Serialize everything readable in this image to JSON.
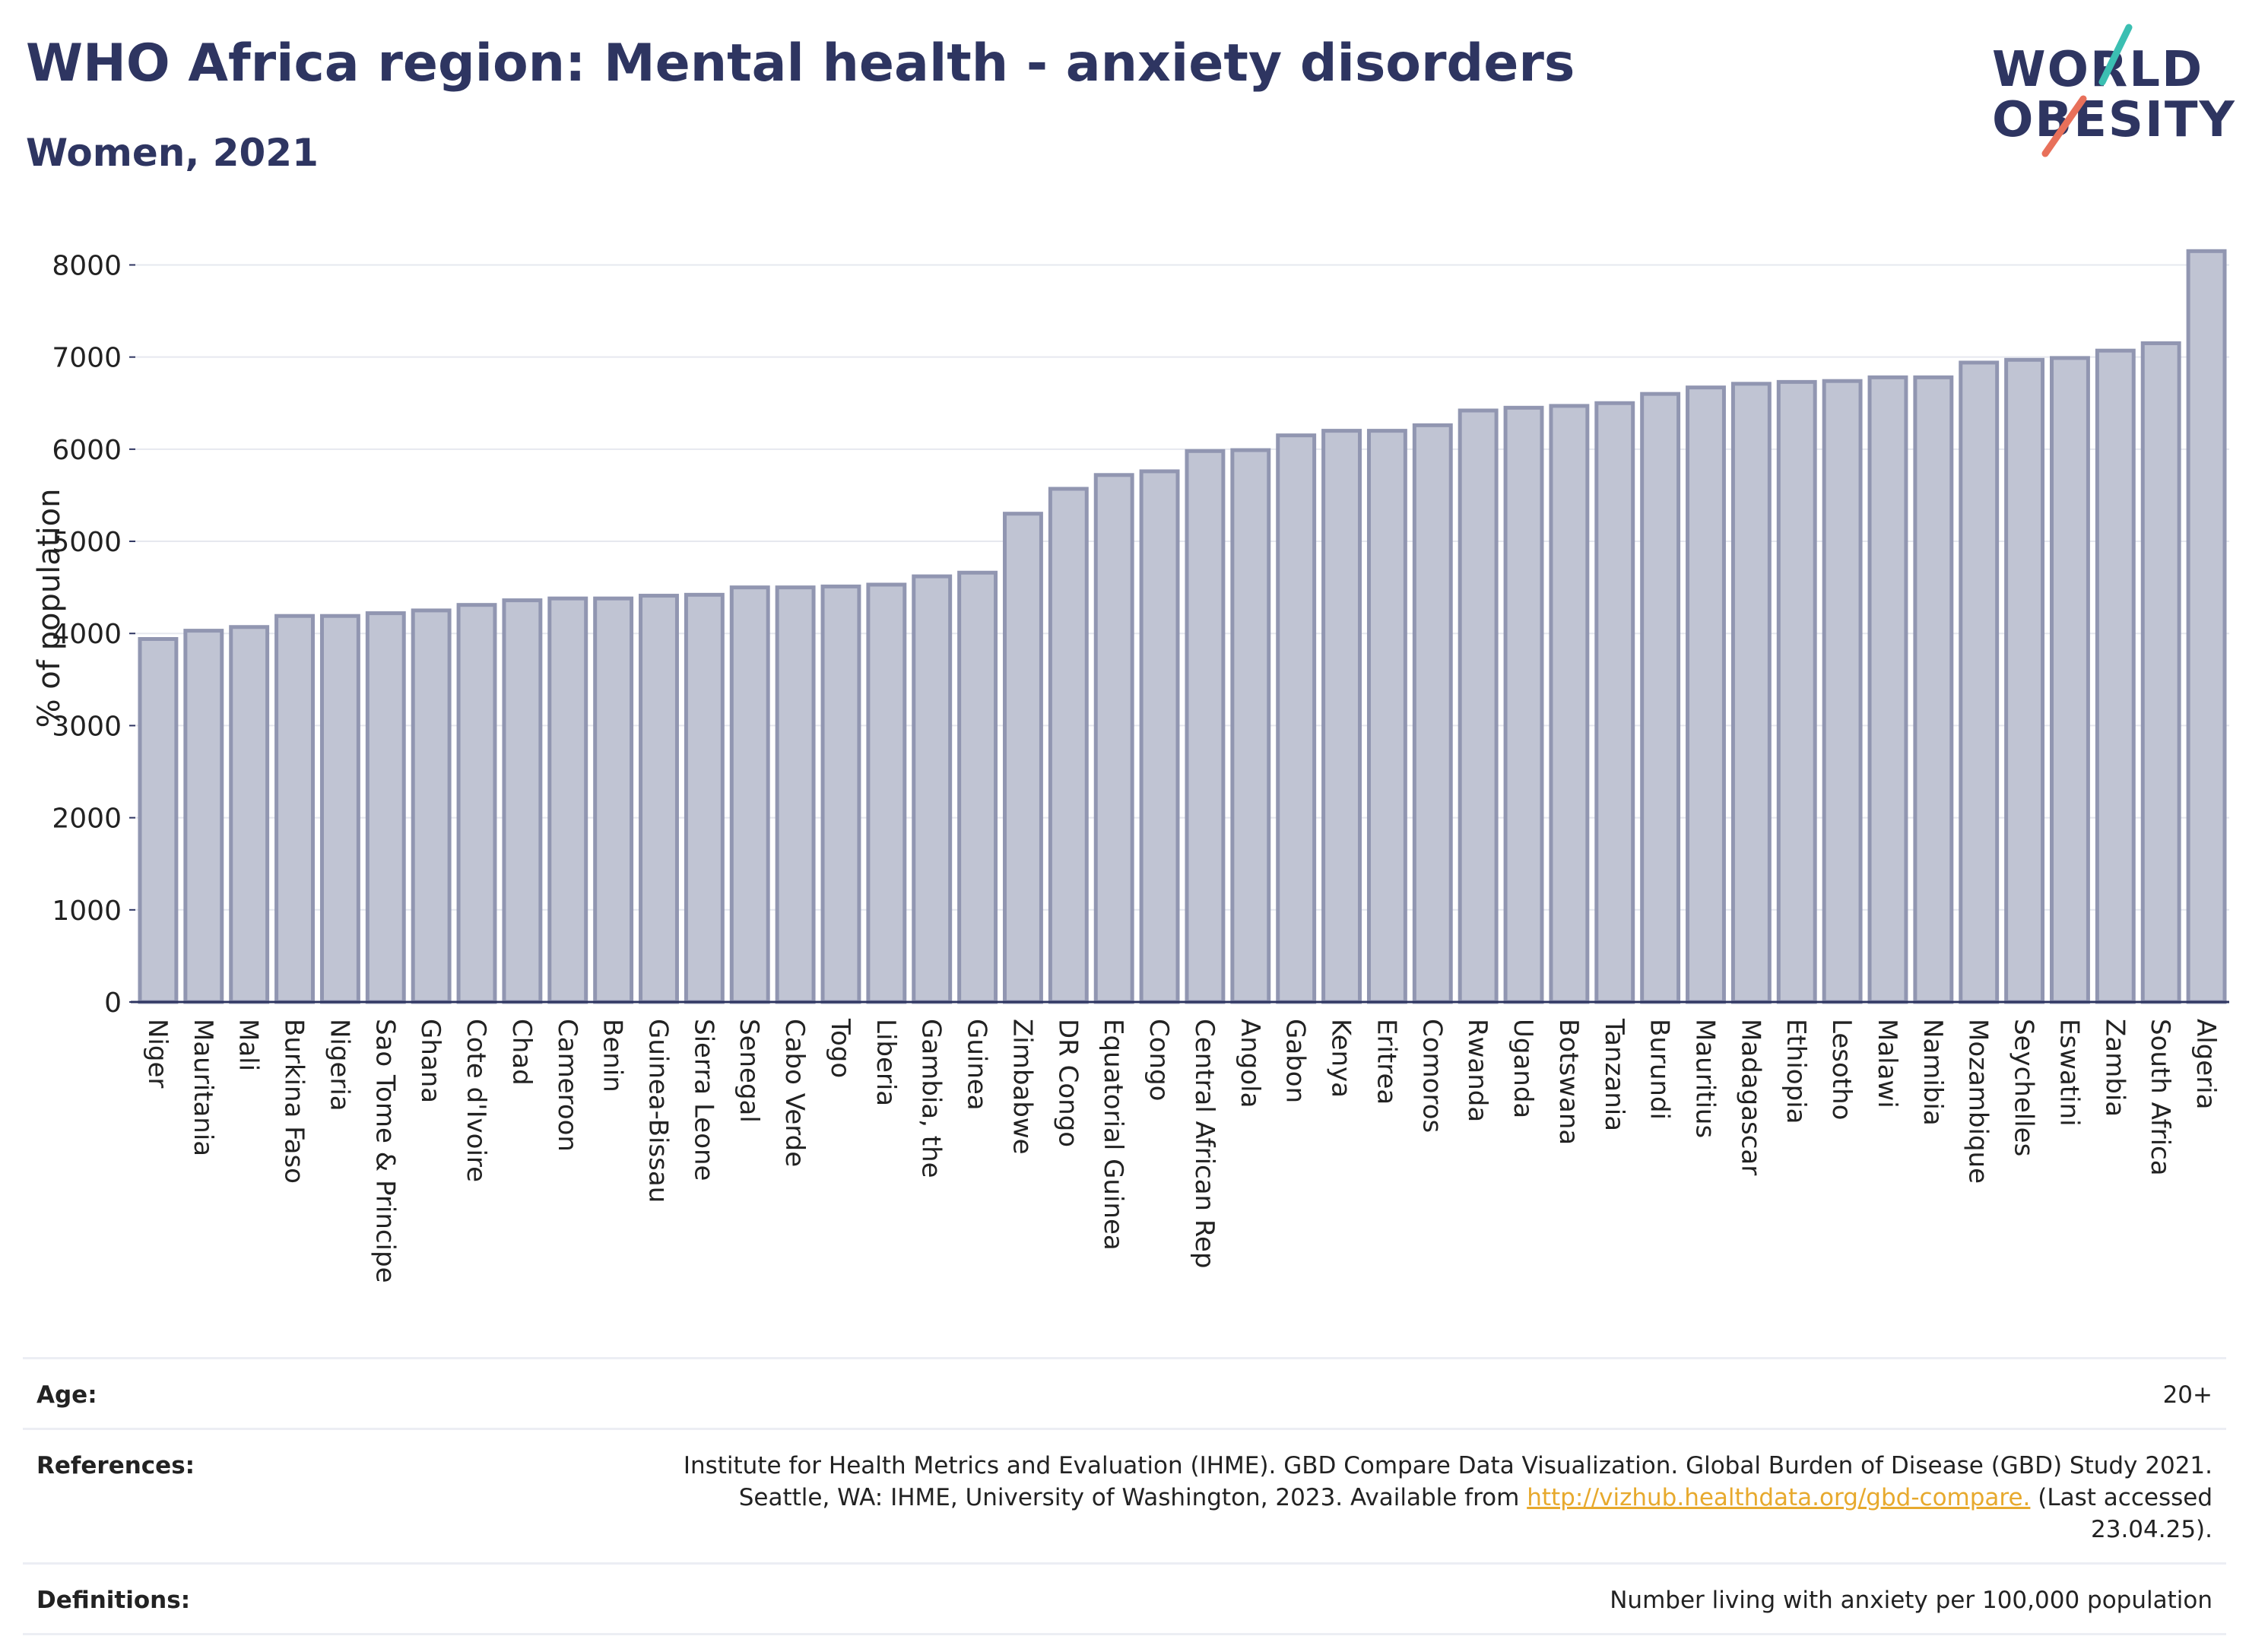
{
  "header": {
    "title": "WHO Africa region: Mental health - anxiety disorders",
    "subtitle": "Women, 2021"
  },
  "logo": {
    "line1": "WORLD",
    "line2": "OBESITY",
    "colors": {
      "teal": "#3bbfb2",
      "coral": "#e8705a",
      "navy": "#2e3561"
    }
  },
  "colors": {
    "bar_fill": "#c0c4d3",
    "bar_stroke": "#9196b1",
    "title": "#2e3561",
    "link": "#e7a92d",
    "grid": "#e6e8ef"
  },
  "chart_data": {
    "type": "bar",
    "ylabel": "% of population",
    "xlabel": "",
    "ylim": [
      0,
      8400
    ],
    "yticks": [
      0,
      1000,
      2000,
      3000,
      4000,
      5000,
      6000,
      7000,
      8000
    ],
    "grid": true,
    "categories": [
      "Niger",
      "Mauritania",
      "Mali",
      "Burkina Faso",
      "Nigeria",
      "Sao Tome & Principe",
      "Ghana",
      "Cote d'Ivoire",
      "Chad",
      "Cameroon",
      "Benin",
      "Guinea-Bissau",
      "Sierra Leone",
      "Senegal",
      "Cabo Verde",
      "Togo",
      "Liberia",
      "Gambia, the",
      "Guinea",
      "Zimbabwe",
      "DR Congo",
      "Equatorial Guinea",
      "Congo",
      "Central African Rep",
      "Angola",
      "Gabon",
      "Kenya",
      "Eritrea",
      "Comoros",
      "Rwanda",
      "Uganda",
      "Botswana",
      "Tanzania",
      "Burundi",
      "Mauritius",
      "Madagascar",
      "Ethiopia",
      "Lesotho",
      "Malawi",
      "Namibia",
      "Mozambique",
      "Seychelles",
      "Eswatini",
      "Zambia",
      "South Africa",
      "Algeria"
    ],
    "values": [
      3940,
      4030,
      4070,
      4190,
      4190,
      4220,
      4250,
      4310,
      4360,
      4380,
      4380,
      4410,
      4420,
      4500,
      4500,
      4510,
      4530,
      4620,
      4660,
      5300,
      5570,
      5720,
      5760,
      5980,
      5990,
      6150,
      6200,
      6200,
      6260,
      6420,
      6450,
      6470,
      6500,
      6600,
      6670,
      6710,
      6730,
      6740,
      6780,
      6780,
      6940,
      6970,
      6990,
      7070,
      7150,
      8150
    ]
  },
  "info": {
    "age": {
      "label": "Age:",
      "value": "20+"
    },
    "references": {
      "label": "References:",
      "text1": "Institute for Health Metrics and Evaluation (IHME). GBD Compare Data Visualization. Global Burden of Disease (GBD) Study 2021.",
      "text2": "Seattle, WA: IHME, University of Washington, 2023. Available from",
      "link": "http://vizhub.healthdata.org/gbd-compare.",
      "text3": "(Last accessed",
      "text4": "23.04.25)."
    },
    "definitions": {
      "label": "Definitions:",
      "value": "Number living with anxiety per 100,000 population"
    }
  }
}
